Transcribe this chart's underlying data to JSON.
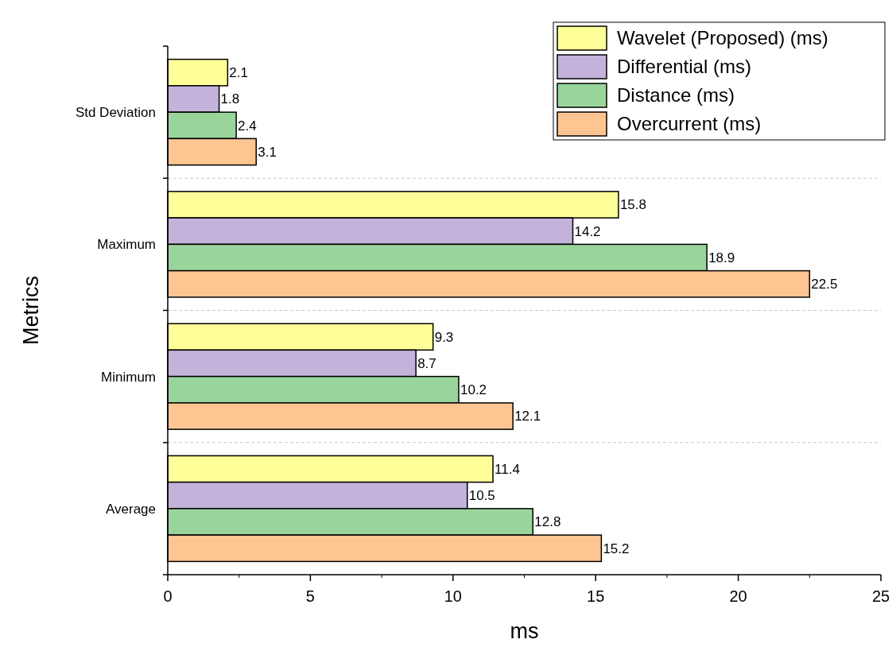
{
  "chart_data": {
    "type": "bar",
    "orientation": "horizontal",
    "xlabel": "ms",
    "ylabel": "Metrics",
    "categories": [
      "Std Deviation",
      "Maximum",
      "Minimum",
      "Average"
    ],
    "series": [
      {
        "name": "Wavelet (Proposed) (ms)",
        "color": "#ffff99",
        "values": [
          2.1,
          15.8,
          9.3,
          11.4
        ]
      },
      {
        "name": "Differential (ms)",
        "color": "#c3b3da",
        "values": [
          1.8,
          14.2,
          8.7,
          10.5
        ]
      },
      {
        "name": "Distance (ms)",
        "color": "#99d59b",
        "values": [
          2.4,
          18.9,
          10.2,
          12.8
        ]
      },
      {
        "name": "Overcurrent (ms)",
        "color": "#fdc592",
        "values": [
          3.1,
          22.5,
          12.1,
          15.2
        ]
      }
    ],
    "xlim": [
      0,
      25
    ],
    "xticks": [
      0,
      5,
      10,
      15,
      20,
      25
    ],
    "data_labels": true,
    "grid": "y",
    "legend": "top right"
  }
}
